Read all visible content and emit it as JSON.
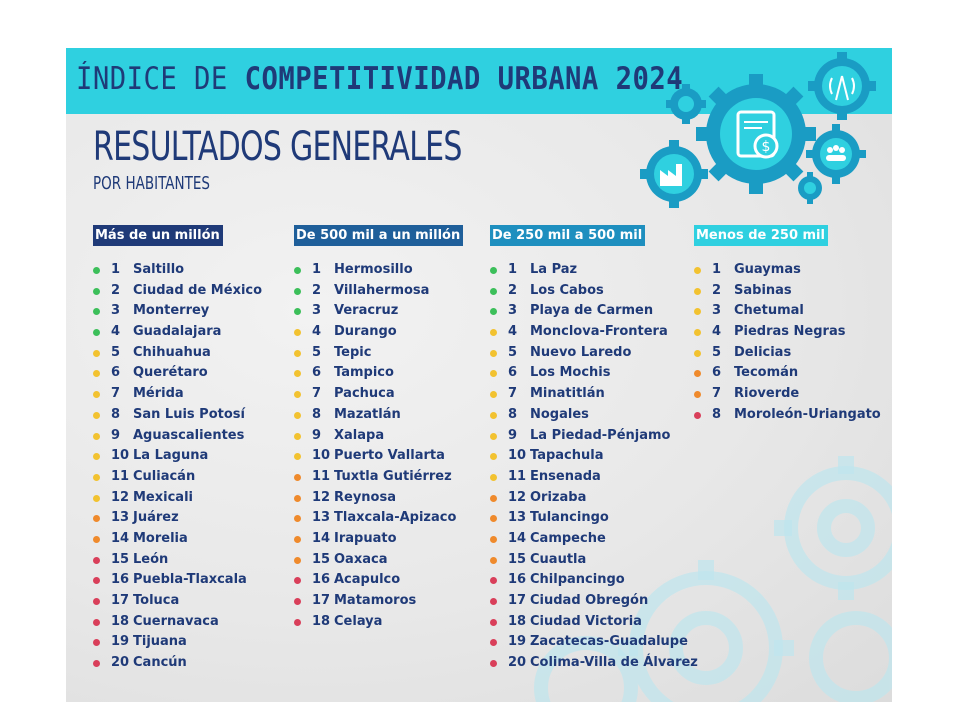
{
  "header": {
    "title_prefix": "ÍNDICE DE ",
    "title_bold": "COMPETITIVIDAD URBANA 2024"
  },
  "section": {
    "title": "RESULTADOS GENERALES",
    "subtitle": "POR HABITANTES"
  },
  "colors": {
    "banner": "#2fd0e0",
    "navy": "#1f3a78",
    "green": "#3cbf5a",
    "yellow": "#f2c230",
    "orange": "#ef8a2c",
    "red": "#d93f5a"
  },
  "columns": [
    {
      "header": "Más de un millón",
      "header_color": "#1f3a78",
      "items": [
        {
          "rank": "1",
          "city": "Saltillo",
          "level": "green"
        },
        {
          "rank": "2",
          "city": "Ciudad de México",
          "level": "green"
        },
        {
          "rank": "3",
          "city": "Monterrey",
          "level": "green"
        },
        {
          "rank": "4",
          "city": "Guadalajara",
          "level": "green"
        },
        {
          "rank": "5",
          "city": "Chihuahua",
          "level": "yellow"
        },
        {
          "rank": "6",
          "city": "Querétaro",
          "level": "yellow"
        },
        {
          "rank": "7",
          "city": "Mérida",
          "level": "yellow"
        },
        {
          "rank": "8",
          "city": "San Luis Potosí",
          "level": "yellow"
        },
        {
          "rank": "9",
          "city": "Aguascalientes",
          "level": "yellow"
        },
        {
          "rank": "10",
          "city": "La Laguna",
          "level": "yellow"
        },
        {
          "rank": "11",
          "city": "Culiacán",
          "level": "yellow"
        },
        {
          "rank": "12",
          "city": "Mexicali",
          "level": "yellow"
        },
        {
          "rank": "13",
          "city": "Juárez",
          "level": "orange"
        },
        {
          "rank": "14",
          "city": "Morelia",
          "level": "orange"
        },
        {
          "rank": "15",
          "city": "León",
          "level": "red"
        },
        {
          "rank": "16",
          "city": "Puebla-Tlaxcala",
          "level": "red"
        },
        {
          "rank": "17",
          "city": "Toluca",
          "level": "red"
        },
        {
          "rank": "18",
          "city": "Cuernavaca",
          "level": "red"
        },
        {
          "rank": "19",
          "city": "Tijuana",
          "level": "red"
        },
        {
          "rank": "20",
          "city": "Cancún",
          "level": "red"
        }
      ]
    },
    {
      "header": "De 500 mil a un millón",
      "header_color": "#1f5f9a",
      "items": [
        {
          "rank": "1",
          "city": "Hermosillo",
          "level": "green"
        },
        {
          "rank": "2",
          "city": "Villahermosa",
          "level": "green"
        },
        {
          "rank": "3",
          "city": "Veracruz",
          "level": "green"
        },
        {
          "rank": "4",
          "city": "Durango",
          "level": "yellow"
        },
        {
          "rank": "5",
          "city": "Tepic",
          "level": "yellow"
        },
        {
          "rank": "6",
          "city": "Tampico",
          "level": "yellow"
        },
        {
          "rank": "7",
          "city": "Pachuca",
          "level": "yellow"
        },
        {
          "rank": "8",
          "city": "Mazatlán",
          "level": "yellow"
        },
        {
          "rank": "9",
          "city": "Xalapa",
          "level": "yellow"
        },
        {
          "rank": "10",
          "city": "Puerto Vallarta",
          "level": "yellow"
        },
        {
          "rank": "11",
          "city": "Tuxtla Gutiérrez",
          "level": "orange"
        },
        {
          "rank": "12",
          "city": "Reynosa",
          "level": "orange"
        },
        {
          "rank": "13",
          "city": "Tlaxcala-Apizaco",
          "level": "orange"
        },
        {
          "rank": "14",
          "city": "Irapuato",
          "level": "orange"
        },
        {
          "rank": "15",
          "city": "Oaxaca",
          "level": "orange"
        },
        {
          "rank": "16",
          "city": "Acapulco",
          "level": "red"
        },
        {
          "rank": "17",
          "city": "Matamoros",
          "level": "red"
        },
        {
          "rank": "18",
          "city": "Celaya",
          "level": "red"
        }
      ]
    },
    {
      "header": "De 250 mil a 500 mil",
      "header_color": "#1e8fbf",
      "items": [
        {
          "rank": "1",
          "city": "La Paz",
          "level": "green"
        },
        {
          "rank": "2",
          "city": "Los Cabos",
          "level": "green"
        },
        {
          "rank": "3",
          "city": "Playa de Carmen",
          "level": "green"
        },
        {
          "rank": "4",
          "city": "Monclova-Frontera",
          "level": "yellow"
        },
        {
          "rank": "5",
          "city": "Nuevo Laredo",
          "level": "yellow"
        },
        {
          "rank": "6",
          "city": "Los Mochis",
          "level": "yellow"
        },
        {
          "rank": "7",
          "city": "Minatitlán",
          "level": "yellow"
        },
        {
          "rank": "8",
          "city": "Nogales",
          "level": "yellow"
        },
        {
          "rank": "9",
          "city": "La Piedad-Pénjamo",
          "level": "yellow"
        },
        {
          "rank": "10",
          "city": "Tapachula",
          "level": "yellow"
        },
        {
          "rank": "11",
          "city": "Ensenada",
          "level": "yellow"
        },
        {
          "rank": "12",
          "city": "Orizaba",
          "level": "orange"
        },
        {
          "rank": "13",
          "city": "Tulancingo",
          "level": "orange"
        },
        {
          "rank": "14",
          "city": "Campeche",
          "level": "orange"
        },
        {
          "rank": "15",
          "city": "Cuautla",
          "level": "orange"
        },
        {
          "rank": "16",
          "city": "Chilpancingo",
          "level": "red"
        },
        {
          "rank": "17",
          "city": "Ciudad Obregón",
          "level": "red"
        },
        {
          "rank": "18",
          "city": "Ciudad Victoria",
          "level": "red"
        },
        {
          "rank": "19",
          "city": "Zacatecas-Guadalupe",
          "level": "red"
        },
        {
          "rank": "20",
          "city": "Colima-Villa de Álvarez",
          "level": "red"
        }
      ]
    },
    {
      "header": "Menos de 250 mil",
      "header_color": "#2fd0e0",
      "items": [
        {
          "rank": "1",
          "city": "Guaymas",
          "level": "yellow"
        },
        {
          "rank": "2",
          "city": "Sabinas",
          "level": "yellow"
        },
        {
          "rank": "3",
          "city": "Chetumal",
          "level": "yellow"
        },
        {
          "rank": "4",
          "city": "Piedras Negras",
          "level": "yellow"
        },
        {
          "rank": "5",
          "city": "Delicias",
          "level": "yellow"
        },
        {
          "rank": "6",
          "city": "Tecomán",
          "level": "orange"
        },
        {
          "rank": "7",
          "city": "Rioverde",
          "level": "orange"
        },
        {
          "rank": "8",
          "city": "Moroleón-Uriangato",
          "level": "red"
        }
      ]
    }
  ]
}
